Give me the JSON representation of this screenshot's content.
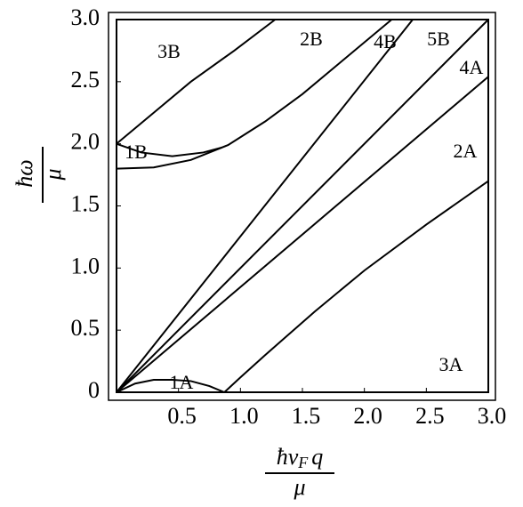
{
  "chart_data": {
    "type": "line",
    "xlabel": {
      "numerator": [
        "ħv",
        "F",
        "q"
      ],
      "denominator": "μ"
    },
    "ylabel": {
      "numerator": "ħω",
      "denominator": "μ"
    },
    "xlim": [
      0,
      3
    ],
    "ylim": [
      0,
      3
    ],
    "xticks": [
      0.5,
      {
        "value": 1,
        "label": "1.0"
      },
      1.5,
      {
        "value": 2,
        "label": "2.0"
      },
      2.5,
      {
        "value": 3,
        "label": "3.0"
      }
    ],
    "yticks": [
      0,
      0.5,
      {
        "value": 1,
        "label": "1.0"
      },
      1.5,
      {
        "value": 2,
        "label": "2.0"
      },
      2.5,
      {
        "value": 3,
        "label": "3.0"
      }
    ],
    "grid": false,
    "series": [
      {
        "color": "#000000",
        "x": [
          0,
          0.15,
          0.3,
          0.45,
          0.6,
          0.75,
          0.87
        ],
        "values": [
          0,
          0.07,
          0.1,
          0.1,
          0.09,
          0.05,
          0
        ]
      },
      {
        "color": "#000000",
        "x": [
          0,
          2.39
        ],
        "values": [
          0,
          3
        ]
      },
      {
        "color": "#000000",
        "x": [
          0,
          3
        ],
        "values": [
          0,
          3
        ]
      },
      {
        "color": "#000000",
        "x": [
          0,
          3
        ],
        "values": [
          0,
          2.54
        ]
      },
      {
        "color": "#000000",
        "x": [
          0.87,
          1.0,
          1.2,
          1.6,
          2.0,
          2.5,
          3.0
        ],
        "values": [
          0,
          0.12,
          0.3,
          0.65,
          0.98,
          1.35,
          1.7
        ]
      },
      {
        "color": "#000000",
        "x": [
          0,
          0.3,
          0.6,
          0.95,
          1.28
        ],
        "values": [
          2.0,
          2.25,
          2.5,
          2.75,
          3.0
        ]
      },
      {
        "color": "#000000",
        "x": [
          0,
          0.2,
          0.45,
          0.7,
          0.85
        ],
        "values": [
          2.0,
          1.93,
          1.9,
          1.93,
          1.97
        ]
      },
      {
        "color": "#000000",
        "x": [
          0,
          0.3,
          0.6,
          0.9,
          1.2,
          1.5,
          1.8,
          2.22
        ],
        "values": [
          1.8,
          1.81,
          1.87,
          1.99,
          2.18,
          2.4,
          2.65,
          3.0
        ]
      }
    ],
    "annotations": [
      "3B",
      "2B",
      "4B",
      "5B",
      "4A",
      "2A",
      "1B",
      "1A",
      "3A"
    ]
  }
}
